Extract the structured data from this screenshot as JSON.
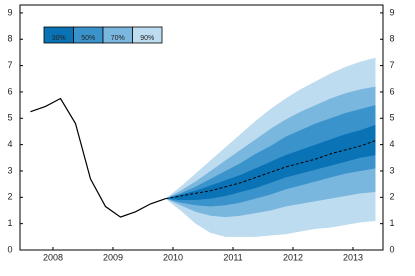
{
  "chart_data": {
    "type": "fan",
    "xlim": [
      2007.95,
      2014.0
    ],
    "ylim": [
      0,
      9.3
    ],
    "yticks": [
      0,
      1,
      2,
      3,
      4,
      5,
      6,
      7,
      8,
      9
    ],
    "xticks": [
      {
        "value": 2008.5,
        "label": "2008"
      },
      {
        "value": 2009.5,
        "label": "2009"
      },
      {
        "value": 2010.5,
        "label": "2010"
      },
      {
        "value": 2011.5,
        "label": "2011"
      },
      {
        "value": 2012.5,
        "label": "2012"
      },
      {
        "value": 2013.5,
        "label": "2013"
      }
    ],
    "history": {
      "color": "#000000",
      "x": [
        2008.125,
        2008.375,
        2008.625,
        2008.875,
        2009.125,
        2009.375,
        2009.625,
        2009.875,
        2010.125,
        2010.375
      ],
      "values": [
        5.25,
        5.45,
        5.75,
        4.8,
        2.7,
        1.65,
        1.25,
        1.45,
        1.75,
        1.95
      ]
    },
    "x": [
      2010.375,
      2010.625,
      2010.875,
      2011.125,
      2011.375,
      2011.625,
      2011.875,
      2012.125,
      2012.375,
      2012.625,
      2012.875,
      2013.125,
      2013.375,
      2013.625,
      2013.875
    ],
    "median": {
      "color": "#000000",
      "values": [
        1.95,
        2.05,
        2.15,
        2.25,
        2.4,
        2.55,
        2.75,
        2.95,
        3.15,
        3.3,
        3.45,
        3.65,
        3.8,
        3.95,
        4.15
      ]
    },
    "series": [
      {
        "name": "30%",
        "color": "#0a73b5",
        "upper": [
          1.95,
          2.1,
          2.25,
          2.45,
          2.65,
          2.85,
          3.1,
          3.35,
          3.6,
          3.8,
          4.0,
          4.2,
          4.4,
          4.55,
          4.75
        ],
        "lower": [
          1.95,
          1.9,
          1.9,
          1.95,
          2.05,
          2.2,
          2.35,
          2.55,
          2.75,
          2.9,
          3.05,
          3.2,
          3.35,
          3.5,
          3.6
        ]
      },
      {
        "name": "50%",
        "color": "#3b93cc",
        "upper": [
          1.95,
          2.15,
          2.4,
          2.7,
          3.0,
          3.3,
          3.65,
          3.95,
          4.3,
          4.55,
          4.8,
          5.0,
          5.2,
          5.35,
          5.5
        ],
        "lower": [
          1.95,
          1.8,
          1.7,
          1.65,
          1.7,
          1.8,
          1.95,
          2.1,
          2.3,
          2.45,
          2.6,
          2.75,
          2.9,
          3.0,
          3.1
        ]
      },
      {
        "name": "70%",
        "color": "#7ab7df",
        "upper": [
          1.95,
          2.25,
          2.6,
          3.0,
          3.4,
          3.8,
          4.2,
          4.6,
          4.95,
          5.25,
          5.5,
          5.75,
          5.95,
          6.1,
          6.2
        ],
        "lower": [
          1.95,
          1.7,
          1.45,
          1.3,
          1.25,
          1.3,
          1.4,
          1.5,
          1.65,
          1.75,
          1.85,
          1.95,
          2.05,
          2.15,
          2.2
        ]
      },
      {
        "name": "90%",
        "color": "#bedcf0",
        "upper": [
          1.95,
          2.4,
          2.9,
          3.4,
          3.9,
          4.4,
          4.9,
          5.35,
          5.75,
          6.1,
          6.4,
          6.7,
          6.95,
          7.15,
          7.3
        ],
        "lower": [
          1.95,
          1.5,
          1.0,
          0.65,
          0.5,
          0.5,
          0.5,
          0.55,
          0.6,
          0.7,
          0.8,
          0.85,
          0.95,
          1.05,
          1.1
        ]
      }
    ]
  }
}
